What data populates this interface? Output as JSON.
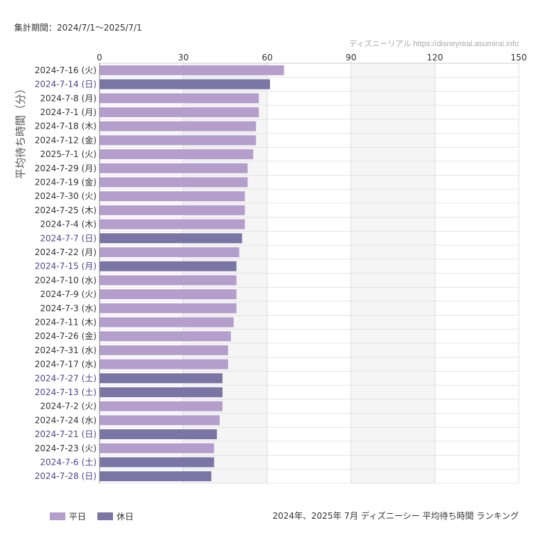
{
  "header": {
    "period_text": "集計期間：2024/7/1〜2025/7/1",
    "source_text": "ディズニーリアル  https://disneyreal.asumirai.info"
  },
  "legend": [
    {
      "name": "weekday",
      "label": "平日",
      "color": "#b49fcc"
    },
    {
      "name": "holiday",
      "label": "休日",
      "color": "#7b75a5"
    }
  ],
  "footer": {
    "caption": "2024年、2025年 7月 ディズニーシー 平均待ち時間 ランキング"
  },
  "colors": {
    "weekday_label": "#333333",
    "holiday_label": "#4d4688"
  },
  "chart_data": {
    "type": "bar",
    "orientation": "horizontal",
    "ylabel": "平均待ち時間（分）",
    "xlim": [
      0,
      150
    ],
    "xticks": [
      0,
      30,
      60,
      90,
      120,
      150
    ],
    "xtick_labels": [
      "0",
      "30",
      "60",
      "90",
      "120",
      "150"
    ],
    "shaded_band": [
      90,
      120
    ],
    "categories": [
      "2024-7-16 (火)",
      "2024-7-14 (日)",
      "2024-7-8 (月)",
      "2024-7-1 (月)",
      "2024-7-18 (木)",
      "2024-7-12 (金)",
      "2025-7-1 (火)",
      "2024-7-29 (月)",
      "2024-7-19 (金)",
      "2024-7-30 (火)",
      "2024-7-25 (木)",
      "2024-7-4 (木)",
      "2024-7-7 (日)",
      "2024-7-22 (月)",
      "2024-7-15 (月)",
      "2024-7-10 (水)",
      "2024-7-9 (火)",
      "2024-7-3 (水)",
      "2024-7-11 (木)",
      "2024-7-26 (金)",
      "2024-7-31 (水)",
      "2024-7-17 (水)",
      "2024-7-27 (土)",
      "2024-7-13 (土)",
      "2024-7-2 (火)",
      "2024-7-24 (水)",
      "2024-7-21 (日)",
      "2024-7-23 (火)",
      "2024-7-6 (土)",
      "2024-7-28 (日)"
    ],
    "values": [
      66,
      61,
      57,
      57,
      56,
      56,
      55,
      53,
      53,
      52,
      52,
      52,
      51,
      50,
      49,
      49,
      49,
      49,
      48,
      47,
      46,
      46,
      44,
      44,
      44,
      43,
      42,
      41,
      41,
      40
    ],
    "day_type": [
      "weekday",
      "holiday",
      "weekday",
      "weekday",
      "weekday",
      "weekday",
      "weekday",
      "weekday",
      "weekday",
      "weekday",
      "weekday",
      "weekday",
      "holiday",
      "weekday",
      "holiday",
      "weekday",
      "weekday",
      "weekday",
      "weekday",
      "weekday",
      "weekday",
      "weekday",
      "holiday",
      "holiday",
      "weekday",
      "weekday",
      "holiday",
      "weekday",
      "holiday",
      "holiday"
    ]
  }
}
